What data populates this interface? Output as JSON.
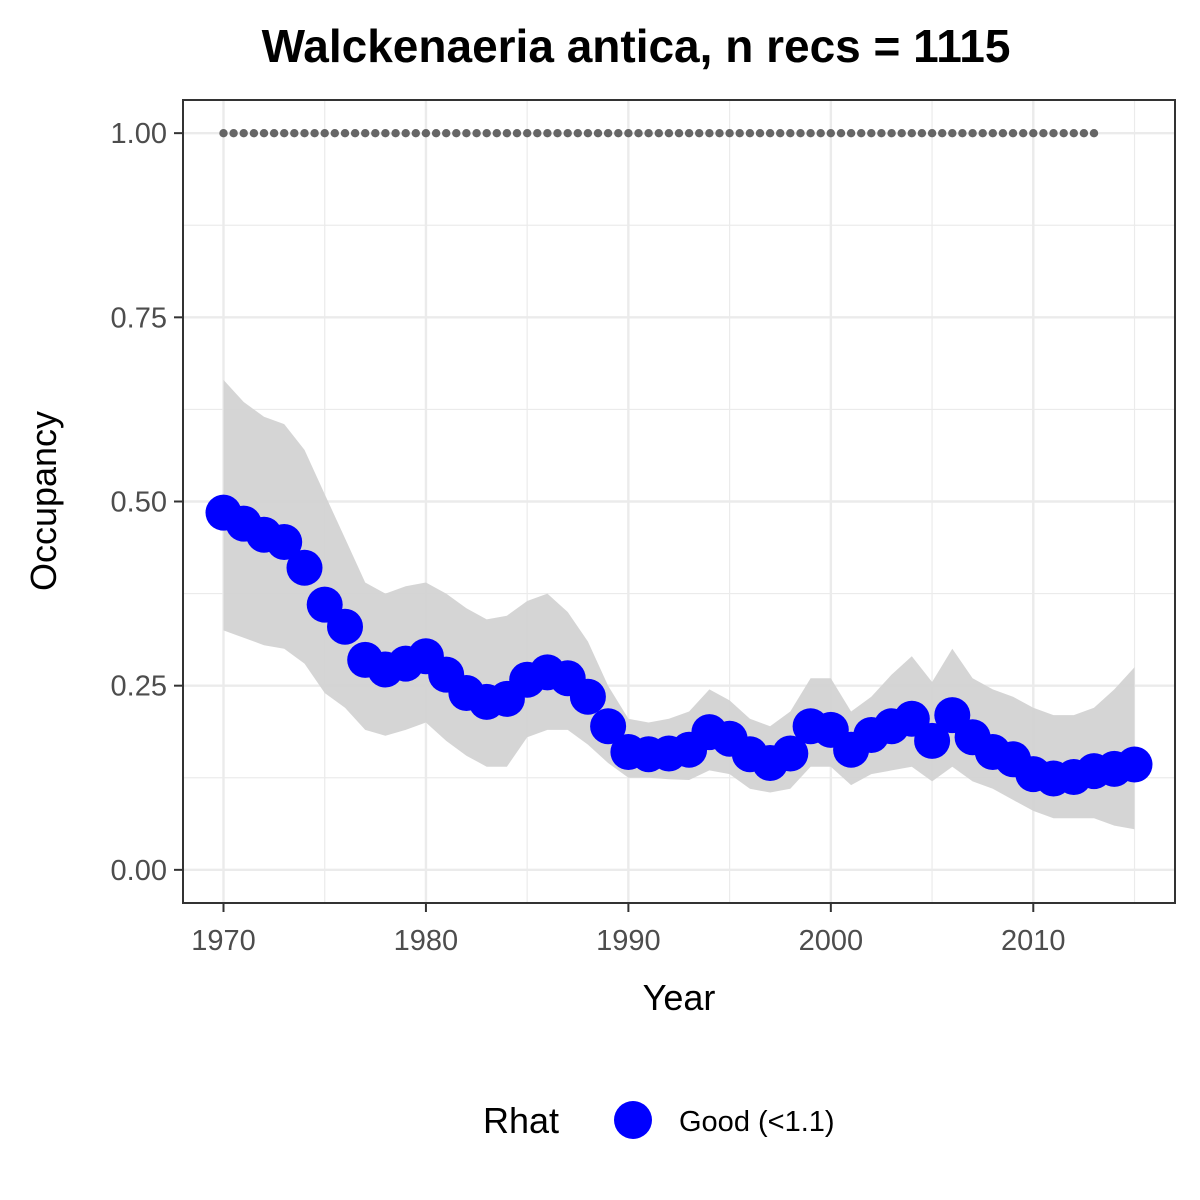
{
  "chart_data": {
    "type": "line",
    "title": "Walckenaeria antica, n recs = 1115",
    "xlabel": "Year",
    "ylabel": "Occupancy",
    "xlim": [
      1968,
      2017
    ],
    "ylim": [
      -0.045,
      1.045
    ],
    "x_ticks": [
      1970,
      1980,
      1990,
      2000,
      2010
    ],
    "x_tick_labels": [
      "1970",
      "1980",
      "1990",
      "2000",
      "2010"
    ],
    "y_ticks": [
      0,
      0.25,
      0.5,
      0.75,
      1.0
    ],
    "y_tick_labels": [
      "0.00",
      "0.25",
      "0.50",
      "0.75",
      "1.00"
    ],
    "grid": true,
    "legend_position": "bottom",
    "legend": {
      "title": "Rhat",
      "entries": [
        {
          "label": "Good (<1.1)",
          "color": "#0000ff"
        }
      ]
    },
    "colors": {
      "point": "#0000ff",
      "ribbon": "#d3d3d3",
      "reference_dots": "#666666",
      "grid": "#ebebeb",
      "panel_border": "#333333"
    },
    "x": [
      1970,
      1971,
      1972,
      1973,
      1974,
      1975,
      1976,
      1977,
      1978,
      1979,
      1980,
      1981,
      1982,
      1983,
      1984,
      1985,
      1986,
      1987,
      1988,
      1989,
      1990,
      1991,
      1992,
      1993,
      1994,
      1995,
      1996,
      1997,
      1998,
      1999,
      2000,
      2001,
      2002,
      2003,
      2004,
      2005,
      2006,
      2007,
      2008,
      2009,
      2010,
      2011,
      2012,
      2013,
      2014,
      2015
    ],
    "series": [
      {
        "kind": "mean",
        "values": [
          0.485,
          0.47,
          0.455,
          0.445,
          0.41,
          0.36,
          0.33,
          0.285,
          0.272,
          0.28,
          0.29,
          0.265,
          0.24,
          0.228,
          0.232,
          0.258,
          0.268,
          0.26,
          0.235,
          0.195,
          0.16,
          0.157,
          0.158,
          0.163,
          0.187,
          0.178,
          0.157,
          0.145,
          0.158,
          0.195,
          0.19,
          0.163,
          0.183,
          0.195,
          0.205,
          0.175,
          0.21,
          0.18,
          0.16,
          0.15,
          0.13,
          0.124,
          0.126,
          0.134,
          0.137,
          0.143
        ]
      },
      {
        "kind": "upper",
        "values": [
          0.665,
          0.635,
          0.615,
          0.605,
          0.57,
          0.51,
          0.45,
          0.39,
          0.375,
          0.385,
          0.39,
          0.375,
          0.355,
          0.34,
          0.345,
          0.365,
          0.375,
          0.35,
          0.31,
          0.25,
          0.205,
          0.2,
          0.205,
          0.215,
          0.245,
          0.23,
          0.205,
          0.195,
          0.215,
          0.26,
          0.26,
          0.215,
          0.235,
          0.265,
          0.29,
          0.255,
          0.3,
          0.26,
          0.245,
          0.235,
          0.22,
          0.21,
          0.21,
          0.22,
          0.245,
          0.275
        ]
      },
      {
        "kind": "lower",
        "values": [
          0.325,
          0.315,
          0.305,
          0.3,
          0.28,
          0.24,
          0.22,
          0.19,
          0.182,
          0.19,
          0.2,
          0.175,
          0.155,
          0.14,
          0.14,
          0.18,
          0.19,
          0.19,
          0.17,
          0.145,
          0.125,
          0.125,
          0.123,
          0.122,
          0.135,
          0.13,
          0.11,
          0.105,
          0.11,
          0.14,
          0.14,
          0.115,
          0.13,
          0.135,
          0.14,
          0.12,
          0.14,
          0.12,
          0.11,
          0.095,
          0.08,
          0.07,
          0.07,
          0.07,
          0.06,
          0.055
        ]
      },
      {
        "kind": "reference_dots",
        "x": [
          1970,
          1971,
          1972,
          1973,
          1974,
          1975,
          1976,
          1977,
          1978,
          1979,
          1980,
          1981,
          1982,
          1983,
          1984,
          1985,
          1986,
          1987,
          1988,
          1989,
          1990,
          1991,
          1992,
          1993,
          1994,
          1995,
          1996,
          1997,
          1998,
          1999,
          2000,
          2001,
          2002,
          2003,
          2004,
          2005,
          2006,
          2007,
          2008,
          2009,
          2010,
          2011,
          2012,
          2013
        ],
        "value": 1.0
      }
    ]
  }
}
